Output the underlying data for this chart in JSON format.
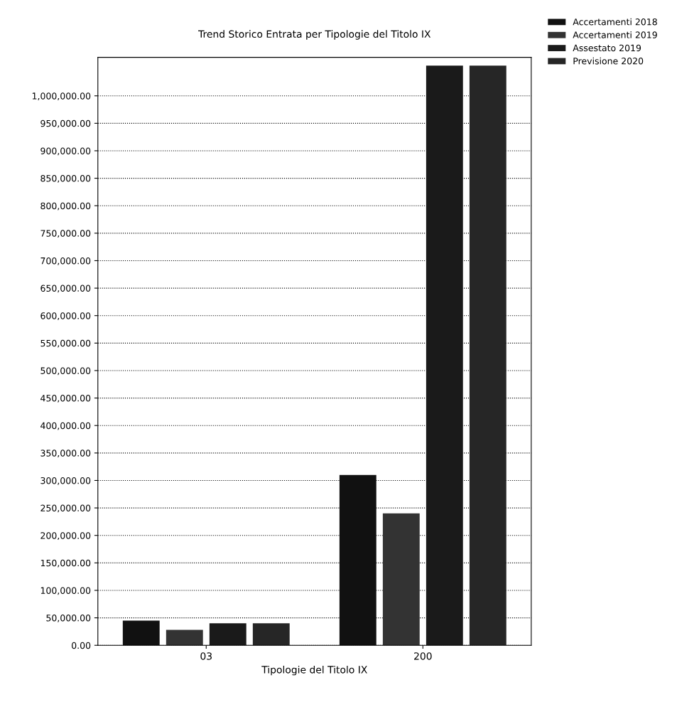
{
  "chart_data": {
    "type": "bar",
    "title": "Trend Storico Entrata per Tipologie del Titolo IX",
    "xlabel": "Tipologie del Titolo IX",
    "categories": [
      "03",
      "200"
    ],
    "series": [
      {
        "name": "Accertamenti 2018",
        "color": "#111111",
        "values": [
          45000,
          310000
        ]
      },
      {
        "name": "Accertamenti 2019",
        "color": "#333333",
        "values": [
          28000,
          240000
        ]
      },
      {
        "name": "Assestato 2019",
        "color": "#1a1a1a",
        "values": [
          40000,
          1055000
        ]
      },
      {
        "name": "Previsione 2020",
        "color": "#262626",
        "values": [
          40000,
          1055000
        ]
      }
    ],
    "ylim": [
      0,
      1070000
    ],
    "yticks": [
      {
        "value": 0,
        "label": "0.00"
      },
      {
        "value": 50000,
        "label": "50,000.00"
      },
      {
        "value": 100000,
        "label": "100,000.00"
      },
      {
        "value": 150000,
        "label": "150,000.00"
      },
      {
        "value": 200000,
        "label": "200,000.00"
      },
      {
        "value": 250000,
        "label": "250,000.00"
      },
      {
        "value": 300000,
        "label": "300,000.00"
      },
      {
        "value": 350000,
        "label": "350,000.00"
      },
      {
        "value": 400000,
        "label": "400,000.00"
      },
      {
        "value": 450000,
        "label": "450,000.00"
      },
      {
        "value": 500000,
        "label": "500,000.00"
      },
      {
        "value": 550000,
        "label": "550,000.00"
      },
      {
        "value": 600000,
        "label": "600,000.00"
      },
      {
        "value": 650000,
        "label": "650,000.00"
      },
      {
        "value": 700000,
        "label": "700,000.00"
      },
      {
        "value": 750000,
        "label": "750,000.00"
      },
      {
        "value": 800000,
        "label": "800,000.00"
      },
      {
        "value": 850000,
        "label": "850,000.00"
      },
      {
        "value": 900000,
        "label": "900,000.00"
      },
      {
        "value": 950000,
        "label": "950,000.00"
      },
      {
        "value": 1000000,
        "label": "1,000,000.00"
      }
    ],
    "grid": "y",
    "legend": "top right"
  }
}
